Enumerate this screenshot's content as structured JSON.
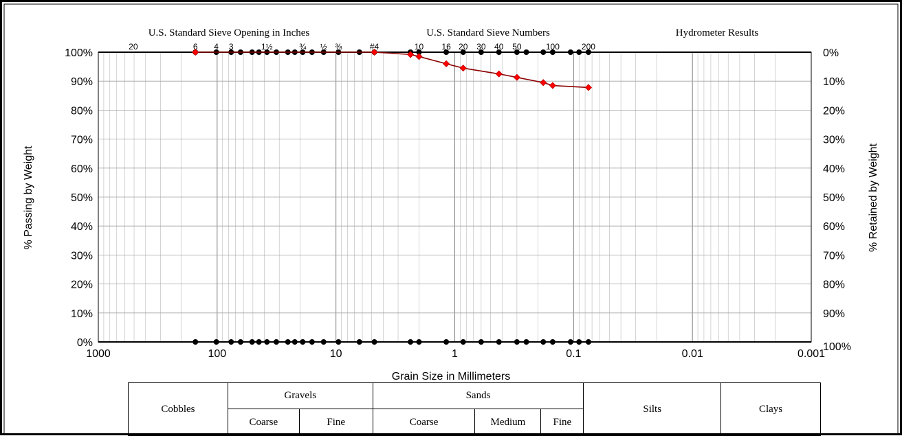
{
  "chart_data": {
    "type": "scatter",
    "x_scale": "log",
    "x_reversed": true,
    "xlim": [
      1000,
      0.001
    ],
    "ylim": [
      0,
      100
    ],
    "xlabel": "Grain Size in Millimeters",
    "ylabel_left": "% Passing by Weight",
    "ylabel_right": "% Retained by Weight",
    "x_ticks": [
      {
        "v": 1000,
        "label": "1000"
      },
      {
        "v": 100,
        "label": "100"
      },
      {
        "v": 10,
        "label": "10"
      },
      {
        "v": 1,
        "label": "1"
      },
      {
        "v": 0.1,
        "label": "0.1"
      },
      {
        "v": 0.01,
        "label": "0.01"
      },
      {
        "v": 0.001,
        "label": "0.001"
      }
    ],
    "y_ticks_left": [
      "0%",
      "10%",
      "20%",
      "30%",
      "40%",
      "50%",
      "60%",
      "70%",
      "80%",
      "90%",
      "100%"
    ],
    "y_ticks_right": [
      "100%",
      "90%",
      "80%",
      "70%",
      "60%",
      "50%",
      "40%",
      "30%",
      "20%",
      "10%",
      "0%"
    ],
    "top_headers": [
      "U.S. Standard Sieve Opening in Inches",
      "U.S. Standard Sieve Numbers",
      "Hydrometer Results"
    ],
    "sieve_labels": [
      {
        "x": 508,
        "label": "20"
      },
      {
        "x": 152.4,
        "label": "6"
      },
      {
        "x": 101.6,
        "label": "4"
      },
      {
        "x": 76.2,
        "label": "3"
      },
      {
        "x": 38.1,
        "label": "1½"
      },
      {
        "x": 19.05,
        "label": "¾"
      },
      {
        "x": 12.7,
        "label": "½"
      },
      {
        "x": 9.525,
        "label": "⅜"
      },
      {
        "x": 4.75,
        "label": "#4"
      },
      {
        "x": 2.0,
        "label": "10"
      },
      {
        "x": 1.18,
        "label": "16"
      },
      {
        "x": 0.85,
        "label": "20"
      },
      {
        "x": 0.6,
        "label": "30"
      },
      {
        "x": 0.425,
        "label": "40"
      },
      {
        "x": 0.3,
        "label": "50"
      },
      {
        "x": 0.15,
        "label": "100"
      },
      {
        "x": 0.075,
        "label": "200"
      }
    ],
    "sieve_sizes_mm": [
      152.4,
      101.6,
      76.2,
      63.5,
      50.8,
      44.5,
      38.1,
      31.75,
      25.4,
      22.2,
      19.05,
      15.9,
      12.7,
      9.525,
      6.35,
      4.75,
      2.36,
      2.0,
      1.18,
      0.85,
      0.6,
      0.425,
      0.3,
      0.25,
      0.18,
      0.15,
      0.106,
      0.09,
      0.075
    ],
    "series": [
      {
        "color": "#c00000",
        "line_color": "#8b0000",
        "x": [
          152.4,
          4.75,
          2.36,
          2.0,
          1.18,
          0.85,
          0.425,
          0.3,
          0.18,
          0.15,
          0.075
        ],
        "y": [
          100,
          100,
          99.2,
          98.5,
          96.0,
          94.5,
          92.5,
          91.3,
          89.5,
          88.5,
          87.8
        ]
      }
    ]
  },
  "soil_table": {
    "cobbles": "Cobbles",
    "gravels": "Gravels",
    "gravel_coarse": "Coarse",
    "gravel_fine": "Fine",
    "sands": "Sands",
    "sand_coarse": "Coarse",
    "sand_medium": "Medium",
    "sand_fine": "Fine",
    "silts": "Silts",
    "clays": "Clays"
  }
}
